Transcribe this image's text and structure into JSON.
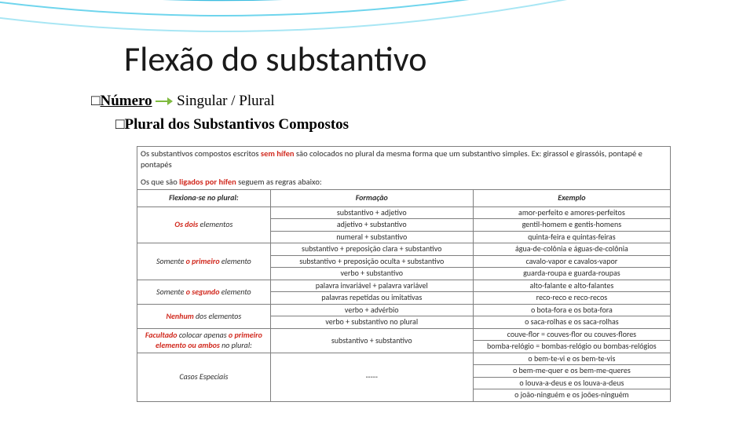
{
  "title": "Flexão do substantivo",
  "sub1": {
    "square": "□",
    "numero": "Número",
    "arrow_svg_color": "#7fba3f",
    "rest": " Singular / Plural"
  },
  "sub2": {
    "square": "□",
    "text": "Plural dos Substantivos Compostos"
  },
  "intro": {
    "p1_a": "Os substantivos compostos escritos ",
    "p1_red": "sem hífen",
    "p1_b": " são colocados no plural da mesma forma que um substantivo simples. Ex: girassol e girassóis, pontapé e pontapés",
    "p2_a": "Os que são ",
    "p2_red": "ligados por hífen",
    "p2_b": " seguem as regras abaixo:"
  },
  "headers": [
    "Flexiona-se no plural:",
    "Formação",
    "Exemplo"
  ],
  "rows": [
    {
      "col1": [
        {
          "t": "Os dois",
          "red": true
        },
        {
          "t": " elementos"
        }
      ],
      "col2": [
        "substantivo + adjetivo",
        "adjetivo + substantivo",
        "numeral + substantivo"
      ],
      "col3": [
        "amor-perfeito e amores-perfeitos",
        "gentil-homem e gentis-homens",
        "quinta-feira e quintas-feiras"
      ]
    },
    {
      "col1": [
        {
          "t": "Somente "
        },
        {
          "t": "o primeiro",
          "red": true
        },
        {
          "t": " elemento"
        }
      ],
      "col2": [
        "substantivo + preposição clara + substantivo",
        "substantivo + preposição oculta + substantivo",
        "verbo + substantivo"
      ],
      "col3": [
        "água-de-colônia e águas-de-colônia",
        "cavalo-vapor e cavalos-vapor",
        "guarda-roupa e guarda-roupas"
      ]
    },
    {
      "col1": [
        {
          "t": "Somente "
        },
        {
          "t": "o segundo",
          "red": true
        },
        {
          "t": " elemento"
        }
      ],
      "col2": [
        "palavra invariável + palavra variável",
        "palavras repetidas ou imitativas"
      ],
      "col3": [
        "alto-falante e alto-falantes",
        "reco-reco e reco-recos"
      ]
    },
    {
      "col1": [
        {
          "t": "Nenhum",
          "red": true
        },
        {
          "t": " dos elementos"
        }
      ],
      "col2": [
        "verbo + advérbio",
        "verbo + substantivo no plural"
      ],
      "col3": [
        "o bota-fora e os bota-fora",
        "o saca-rolhas e os saca-rolhas"
      ]
    },
    {
      "col1": [
        {
          "t": "Facultado",
          "red": true
        },
        {
          "t": " colocar apenas "
        },
        {
          "t": "o primeiro elemento ou ambos",
          "red": true
        },
        {
          "t": " no plural:"
        }
      ],
      "col2": [
        "substantivo + substantivo"
      ],
      "col3": [
        "couve-flor = couves-flor ou couves-flores",
        "bomba-relógio = bombas-relógio ou bombas-relógios"
      ]
    },
    {
      "col1": [
        {
          "t": "Casos Especiais"
        }
      ],
      "col2": [
        "-----"
      ],
      "col3": [
        "o bem-te-vi e os bem-te-vis",
        "o bem-me-quer e os bem-me-queres",
        "o louva-a-deus e os louva-a-deus",
        "o joão-ninguém e os joões-ninguém"
      ]
    }
  ],
  "arcs": {
    "colors": [
      "#2aa7c4",
      "#3cbde0",
      "#6fd5ed",
      "#a8e6f4"
    ]
  }
}
